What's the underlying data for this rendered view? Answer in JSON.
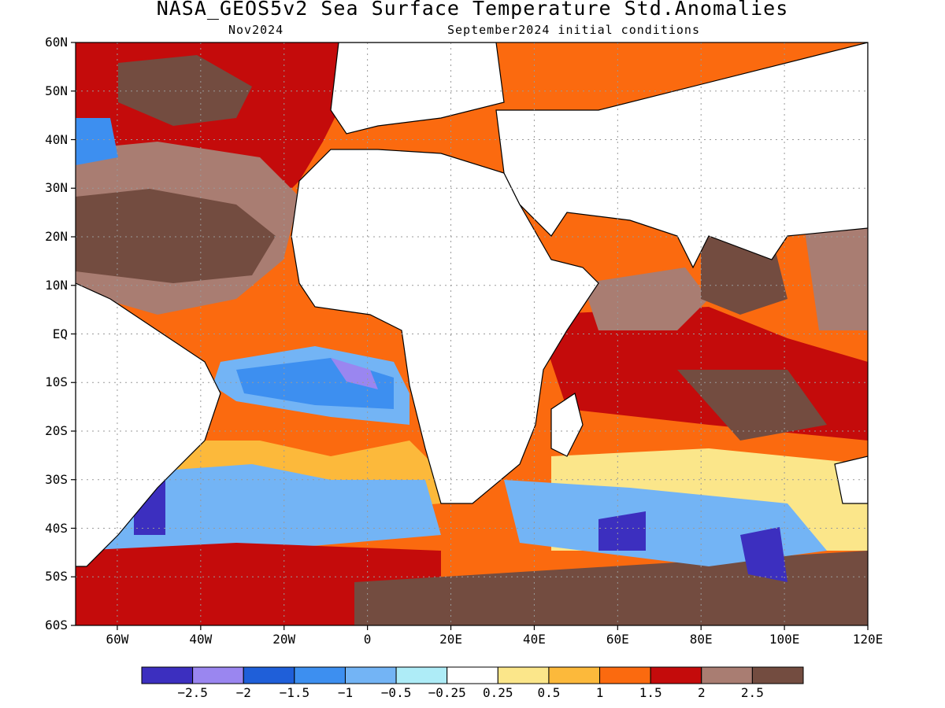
{
  "title": "NASA_GEOS5v2 Sea Surface Temperature Std.Anomalies",
  "subtitle_left": "Nov2024",
  "subtitle_right": "September2024 initial conditions",
  "lat_labels": [
    "60N",
    "50N",
    "40N",
    "30N",
    "20N",
    "10N",
    "EQ",
    "10S",
    "20S",
    "30S",
    "40S",
    "50S",
    "60S"
  ],
  "lon_labels": [
    "60W",
    "40W",
    "20W",
    "0",
    "20E",
    "40E",
    "60E",
    "80E",
    "100E",
    "120E"
  ],
  "colorbar": {
    "colors": [
      "#3c2fbf",
      "#9a86f0",
      "#1f5fd9",
      "#3d8ff0",
      "#73b4f5",
      "#aeecf7",
      "#ffffff",
      "#fbe68a",
      "#fcb93b",
      "#fb6a0f",
      "#c40b0b",
      "#a97d72",
      "#734c40"
    ],
    "labels": [
      "−2.5",
      "−2",
      "−1.5",
      "−1",
      "−0.5",
      "−0.25",
      "0.25",
      "0.5",
      "1",
      "1.5",
      "2",
      "2.5"
    ]
  }
}
